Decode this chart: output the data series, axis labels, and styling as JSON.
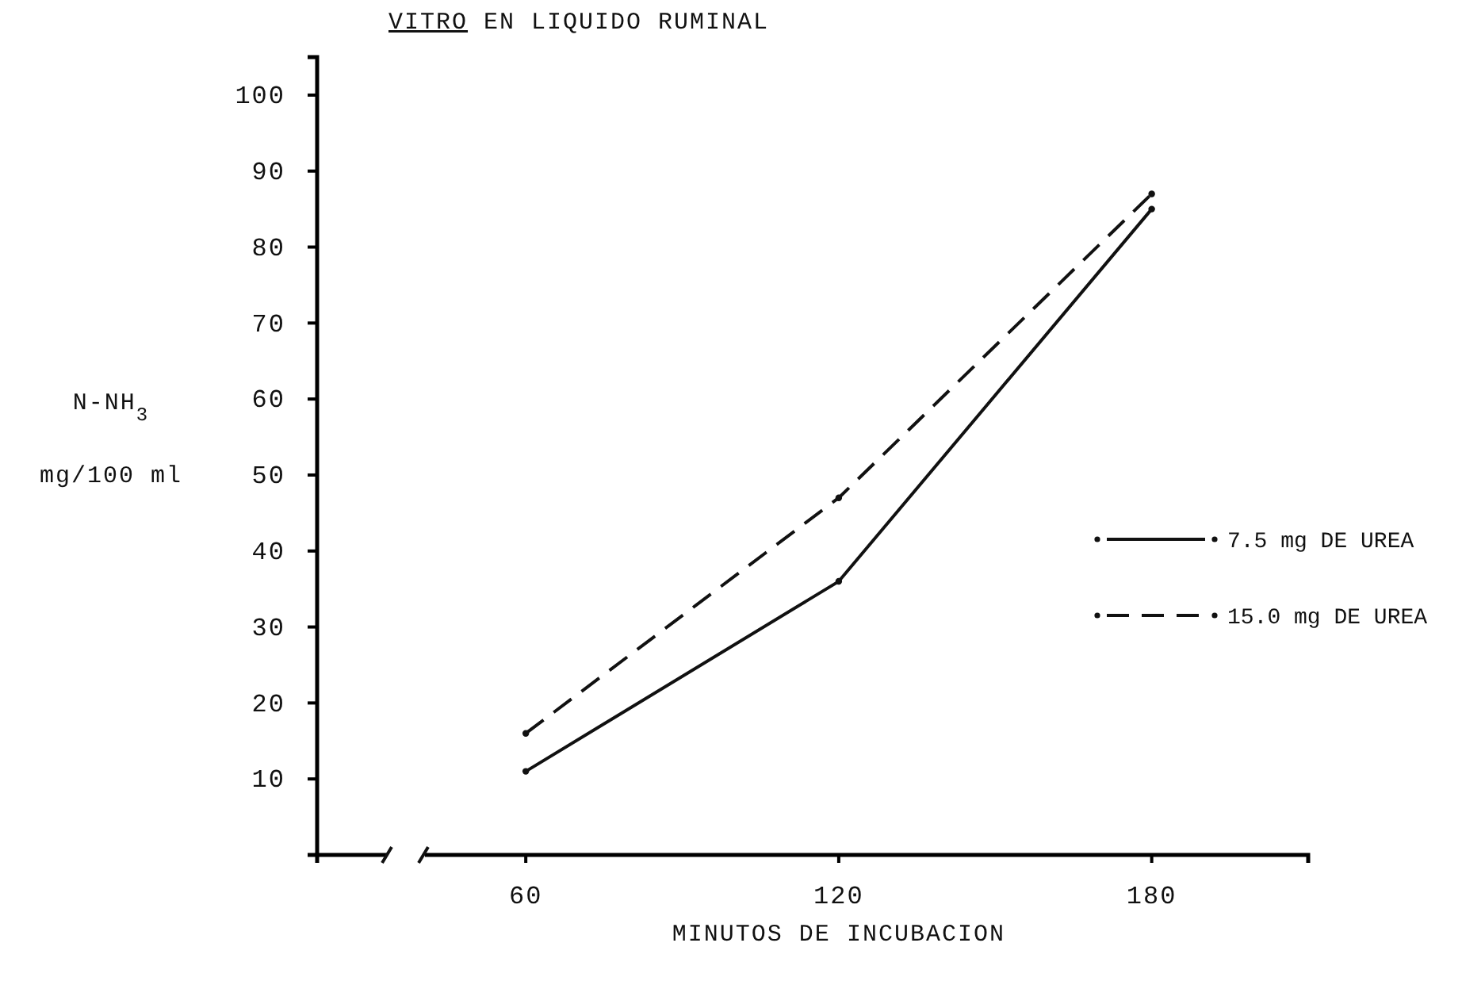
{
  "chart_data": {
    "type": "line",
    "title": "VITRO EN LIQUIDO RUMINAL",
    "xlabel": "MINUTOS DE INCUBACION",
    "ylabel": "N-NH$_{3}$\nmg/100 ml",
    "x": [
      60,
      120,
      180
    ],
    "xlim": [
      20,
      210
    ],
    "xticks": [
      60,
      120,
      180
    ],
    "ylim": [
      0,
      105
    ],
    "yticks": [
      10,
      20,
      30,
      40,
      50,
      60,
      70,
      80,
      90,
      100
    ],
    "grid": false,
    "legend": "right",
    "marker": "circle",
    "series": [
      {
        "name": "7.5 mg DE UREA",
        "color": "#111111",
        "line_style": "solid",
        "values": [
          11,
          36,
          85
        ]
      },
      {
        "name": "15.0 mg DE UREA",
        "color": "#111111",
        "line_style": "dashed",
        "values": [
          16,
          47,
          87
        ]
      }
    ]
  }
}
